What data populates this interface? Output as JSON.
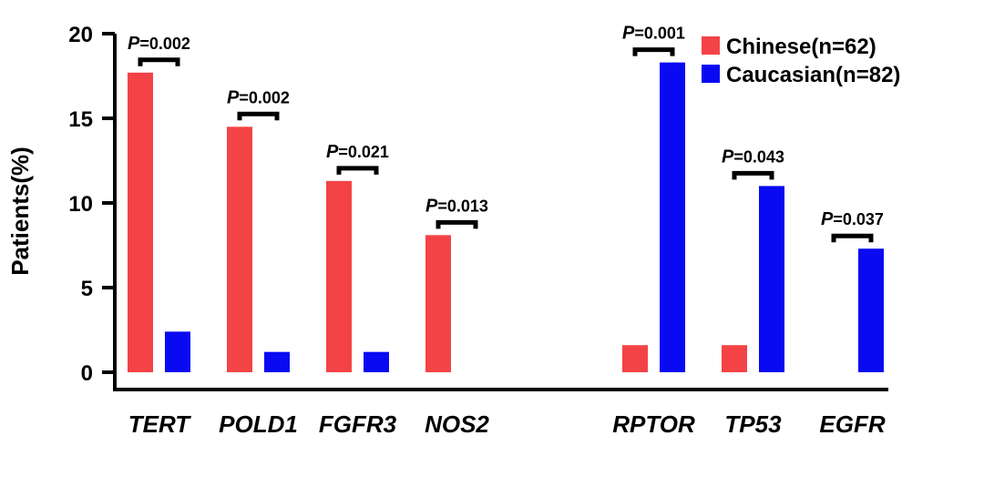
{
  "chart_data": {
    "type": "bar",
    "title": "",
    "xlabel": "",
    "ylabel": "Patients(%)",
    "ylim": [
      0,
      20
    ],
    "yticks": [
      0,
      5,
      10,
      15,
      20
    ],
    "grid": false,
    "legend_position": "top-right",
    "categories": [
      "TERT",
      "POLD1",
      "FGFR3",
      "NOS2",
      "RPTOR",
      "TP53",
      "EGFR"
    ],
    "series": [
      {
        "name": "Chinese(n=62)",
        "color": "#f44346",
        "values": [
          17.7,
          14.5,
          11.3,
          8.1,
          1.6,
          1.6,
          0
        ]
      },
      {
        "name": "Caucasian(n=82)",
        "color": "#0a0af2",
        "values": [
          2.4,
          1.2,
          1.2,
          0,
          18.3,
          11.0,
          7.3
        ]
      }
    ],
    "p_values": [
      {
        "category": "TERT",
        "p_prefix": "P",
        "p_text": "=0.002"
      },
      {
        "category": "POLD1",
        "p_prefix": "P",
        "p_text": "=0.002"
      },
      {
        "category": "FGFR3",
        "p_prefix": "P",
        "p_text": "=0.021"
      },
      {
        "category": "NOS2",
        "p_prefix": "P",
        "p_text": "=0.013"
      },
      {
        "category": "RPTOR",
        "p_prefix": "P",
        "p_text": "=0.001"
      },
      {
        "category": "TP53",
        "p_prefix": "P",
        "p_text": "=0.043"
      },
      {
        "category": "EGFR",
        "p_prefix": "P",
        "p_text": "=0.037"
      }
    ]
  }
}
